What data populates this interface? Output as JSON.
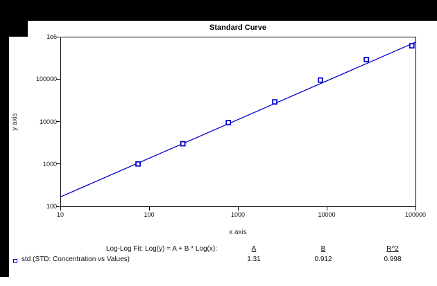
{
  "window": {
    "background_color": "#000000",
    "panel_color": "#ffffff"
  },
  "chart": {
    "title": "Standard Curve",
    "x_axis_label": "x axis",
    "y_axis_label": "y axis",
    "accent_color": "#0000cc"
  },
  "chart_data": {
    "type": "scatter",
    "title": "Standard Curve",
    "xlabel": "x axis",
    "ylabel": "y axis",
    "x_scale": "log",
    "y_scale": "log",
    "xlim": [
      10,
      100000
    ],
    "ylim": [
      100,
      1000000
    ],
    "grid": false,
    "x_ticks": [
      "10",
      "100",
      "1000",
      "10000",
      "100000"
    ],
    "x_tick_values": [
      10,
      100,
      1000,
      10000,
      100000
    ],
    "y_ticks": [
      "1e6",
      "100000",
      "10000",
      "1000",
      "100"
    ],
    "y_tick_values": [
      1000000,
      100000,
      10000,
      1000,
      100
    ],
    "series": [
      {
        "name": "std (STD: Concentration vs Values)",
        "marker": "open-square",
        "color": "#0000cc",
        "x": [
          75,
          240,
          780,
          2600,
          8500,
          28000,
          91000
        ],
        "y": [
          1000,
          3000,
          9400,
          29000,
          95000,
          290000,
          610000
        ]
      }
    ],
    "fit_line": {
      "type": "log-log",
      "equation": "Log(y) = A + B * Log(x)",
      "A": 1.31,
      "B": 0.912,
      "R2": 0.998,
      "color": "#0000cc"
    }
  },
  "footer": {
    "fit_label": "Log-Log Fit: Log(y) = A + B * Log(x):",
    "col_a_header": "A",
    "col_b_header": "B",
    "col_r2_header": "R^2",
    "series_label": "std (STD: Concentration vs Values)",
    "a_value": "1.31",
    "b_value": "0.912",
    "r2_value": "0.998"
  }
}
